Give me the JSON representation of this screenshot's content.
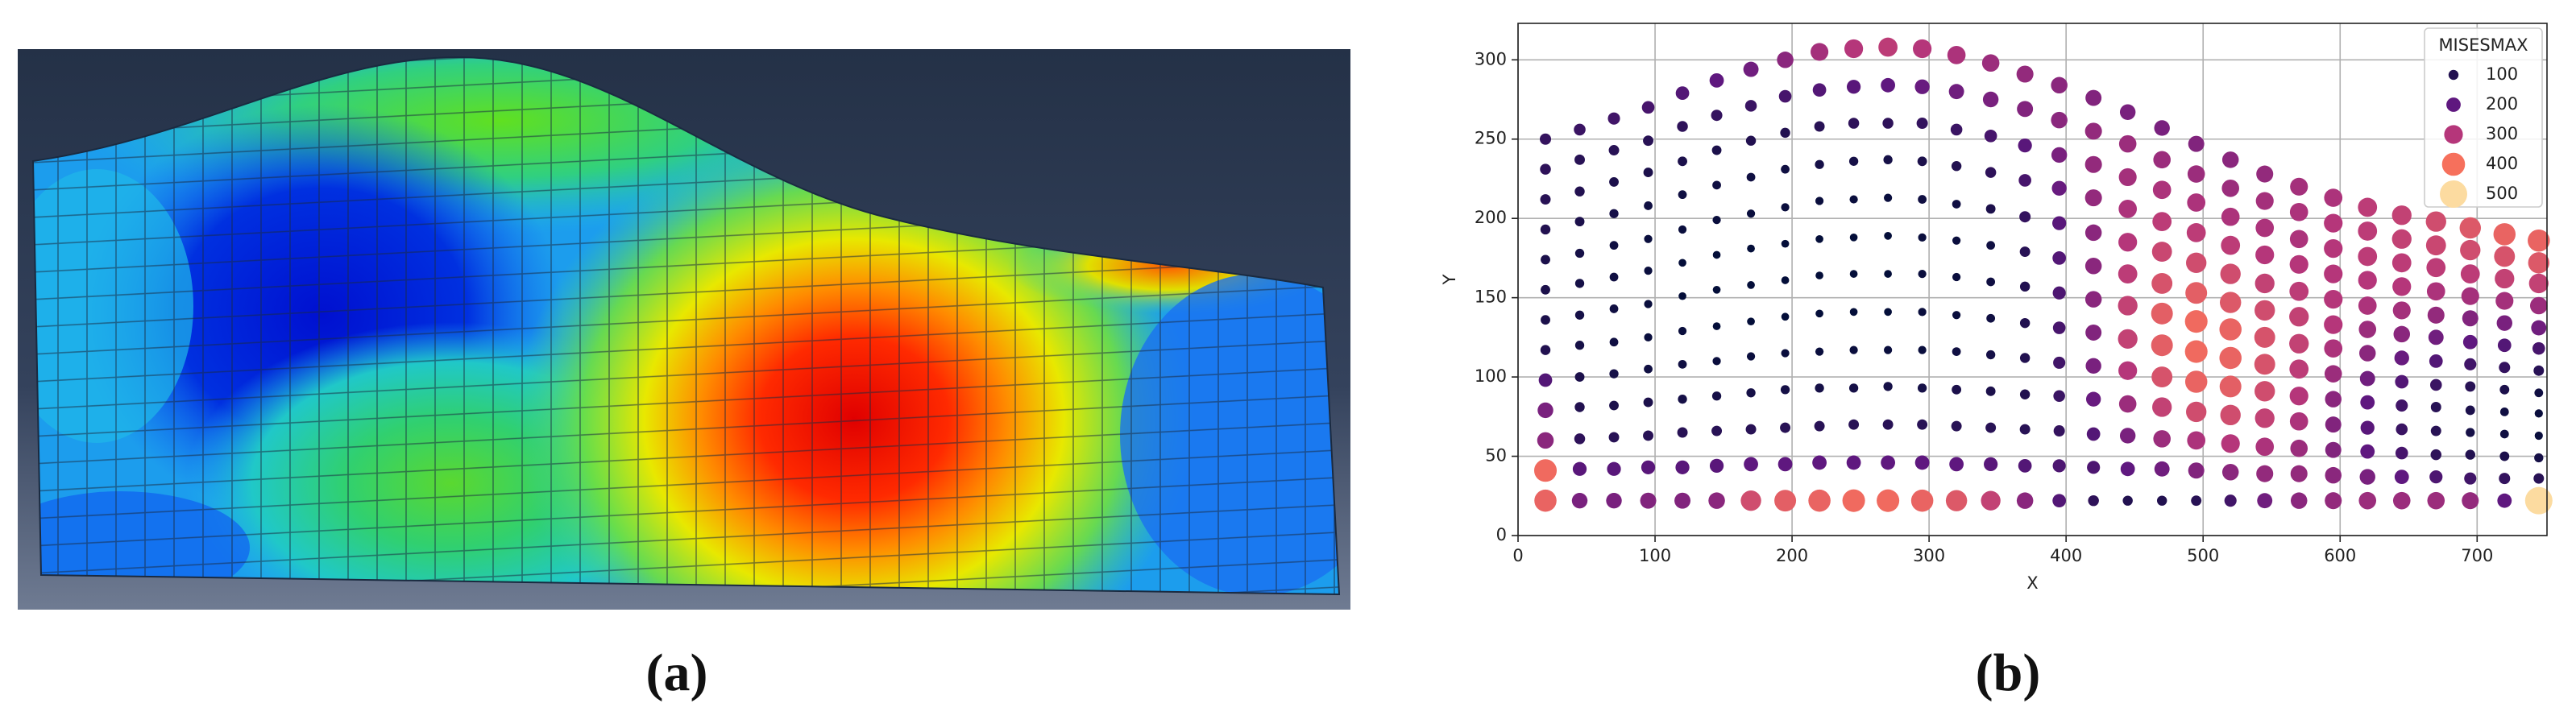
{
  "panel_labels": [
    "(a)",
    "(b)"
  ],
  "chart_data": {
    "type": "scatter",
    "x_label": "X",
    "y_label": "Y",
    "xlim": [
      0,
      751
    ],
    "ylim": [
      0,
      323
    ],
    "xticks": [
      0,
      100,
      200,
      300,
      400,
      500,
      600,
      700
    ],
    "yticks": [
      0,
      50,
      100,
      150,
      200,
      250,
      300
    ],
    "grid": true,
    "legend": {
      "title": "MISESMAX",
      "corner": "upper right",
      "values": [
        100,
        200,
        300,
        400,
        500
      ],
      "colors": [
        "#221150",
        "#5f187f",
        "#b5367a",
        "#f6705c",
        "#fcdba0"
      ]
    },
    "columns": [
      {
        "x": 20,
        "y": [
          22,
          41,
          60,
          79,
          98,
          117,
          136,
          155,
          174,
          193,
          212,
          231,
          250
        ],
        "values": [
          380,
          390,
          250,
          230,
          180,
          100,
          90,
          90,
          90,
          100,
          110,
          120,
          130
        ]
      },
      {
        "x": 45,
        "y": [
          22,
          42,
          61,
          81,
          100,
          120,
          139,
          159,
          178,
          198,
          217,
          237,
          256
        ],
        "values": [
          230,
          190,
          120,
          100,
          90,
          80,
          80,
          80,
          80,
          90,
          100,
          110,
          140
        ]
      },
      {
        "x": 70,
        "y": [
          22,
          42,
          62,
          82,
          102,
          122,
          143,
          163,
          183,
          203,
          223,
          243,
          263
        ],
        "values": [
          230,
          190,
          110,
          90,
          80,
          70,
          70,
          70,
          70,
          80,
          90,
          110,
          150
        ]
      },
      {
        "x": 95,
        "y": [
          22,
          43,
          63,
          84,
          105,
          125,
          146,
          167,
          187,
          208,
          229,
          249,
          270
        ],
        "values": [
          240,
          190,
          110,
          90,
          70,
          60,
          60,
          60,
          60,
          70,
          90,
          110,
          160
        ]
      },
      {
        "x": 120,
        "y": [
          22,
          43,
          65,
          86,
          108,
          129,
          151,
          172,
          193,
          215,
          236,
          258,
          279
        ],
        "values": [
          240,
          190,
          110,
          80,
          70,
          60,
          50,
          50,
          60,
          70,
          90,
          120,
          180
        ]
      },
      {
        "x": 145,
        "y": [
          22,
          44,
          66,
          88,
          110,
          132,
          155,
          177,
          199,
          221,
          243,
          265,
          287
        ],
        "values": [
          250,
          190,
          110,
          80,
          60,
          50,
          50,
          50,
          60,
          70,
          90,
          130,
          200
        ]
      },
      {
        "x": 170,
        "y": [
          22,
          45,
          67,
          90,
          113,
          135,
          158,
          181,
          203,
          226,
          249,
          271,
          294
        ],
        "values": [
          340,
          200,
          110,
          80,
          60,
          50,
          50,
          50,
          60,
          70,
          100,
          140,
          220
        ]
      },
      {
        "x": 195,
        "y": [
          22,
          45,
          68,
          92,
          115,
          138,
          161,
          184,
          207,
          231,
          254,
          277,
          300
        ],
        "values": [
          370,
          200,
          110,
          80,
          60,
          50,
          50,
          50,
          60,
          70,
          100,
          160,
          250
        ]
      },
      {
        "x": 220,
        "y": [
          22,
          46,
          69,
          93,
          116,
          140,
          164,
          187,
          211,
          234,
          258,
          281,
          305
        ],
        "values": [
          380,
          200,
          110,
          80,
          60,
          50,
          50,
          50,
          60,
          80,
          110,
          180,
          280
        ]
      },
      {
        "x": 245,
        "y": [
          22,
          46,
          70,
          93,
          117,
          141,
          165,
          188,
          212,
          236,
          260,
          283,
          307
        ],
        "values": [
          390,
          200,
          110,
          80,
          60,
          50,
          50,
          50,
          60,
          80,
          120,
          190,
          300
        ]
      },
      {
        "x": 270,
        "y": [
          22,
          46,
          70,
          94,
          117,
          141,
          165,
          189,
          213,
          237,
          260,
          284,
          308
        ],
        "values": [
          390,
          200,
          110,
          80,
          60,
          50,
          50,
          50,
          60,
          80,
          120,
          200,
          310
        ]
      },
      {
        "x": 295,
        "y": [
          22,
          46,
          70,
          93,
          117,
          141,
          165,
          188,
          212,
          236,
          260,
          283,
          307
        ],
        "values": [
          380,
          200,
          110,
          80,
          60,
          60,
          60,
          60,
          70,
          90,
          130,
          210,
          300
        ]
      },
      {
        "x": 320,
        "y": [
          22,
          45,
          69,
          92,
          116,
          139,
          163,
          186,
          209,
          233,
          256,
          280,
          303
        ],
        "values": [
          360,
          200,
          110,
          90,
          70,
          60,
          60,
          60,
          70,
          100,
          140,
          220,
          290
        ]
      },
      {
        "x": 345,
        "y": [
          22,
          45,
          68,
          91,
          114,
          137,
          160,
          183,
          206,
          229,
          252,
          275,
          298
        ],
        "values": [
          320,
          190,
          110,
          90,
          80,
          70,
          70,
          70,
          90,
          120,
          160,
          230,
          270
        ]
      },
      {
        "x": 370,
        "y": [
          22,
          44,
          67,
          89,
          112,
          134,
          157,
          179,
          201,
          224,
          246,
          269,
          291
        ],
        "values": [
          250,
          180,
          110,
          100,
          100,
          100,
          100,
          110,
          130,
          160,
          190,
          240,
          260
        ]
      },
      {
        "x": 395,
        "y": [
          22,
          44,
          66,
          88,
          109,
          131,
          153,
          175,
          197,
          219,
          240,
          262,
          284
        ],
        "values": [
          180,
          170,
          130,
          140,
          150,
          160,
          170,
          180,
          190,
          210,
          230,
          250,
          250
        ]
      },
      {
        "x": 420,
        "y": [
          22,
          43,
          64,
          86,
          107,
          128,
          149,
          170,
          191,
          213,
          234,
          255,
          276
        ],
        "values": [
          120,
          170,
          180,
          210,
          230,
          240,
          250,
          250,
          250,
          260,
          260,
          260,
          240
        ]
      },
      {
        "x": 445,
        "y": [
          22,
          42,
          63,
          83,
          104,
          124,
          145,
          165,
          185,
          206,
          226,
          247,
          267
        ],
        "values": [
          100,
          200,
          230,
          270,
          300,
          320,
          320,
          310,
          300,
          290,
          280,
          270,
          230
        ]
      },
      {
        "x": 470,
        "y": [
          22,
          42,
          61,
          81,
          100,
          120,
          140,
          159,
          179,
          198,
          218,
          237,
          257
        ],
        "values": [
          100,
          220,
          270,
          320,
          350,
          370,
          370,
          350,
          330,
          310,
          290,
          270,
          230
        ]
      },
      {
        "x": 495,
        "y": [
          22,
          41,
          60,
          78,
          97,
          116,
          135,
          153,
          172,
          191,
          210,
          228,
          247
        ],
        "values": [
          110,
          240,
          290,
          340,
          380,
          390,
          390,
          370,
          340,
          310,
          290,
          270,
          240
        ]
      },
      {
        "x": 520,
        "y": [
          22,
          40,
          58,
          76,
          94,
          112,
          130,
          147,
          165,
          183,
          201,
          219,
          237
        ],
        "values": [
          150,
          250,
          300,
          340,
          370,
          380,
          380,
          360,
          340,
          310,
          290,
          270,
          250
        ]
      },
      {
        "x": 545,
        "y": [
          22,
          39,
          56,
          74,
          91,
          108,
          125,
          142,
          159,
          177,
          194,
          211,
          228
        ],
        "values": [
          220,
          260,
          290,
          320,
          340,
          350,
          350,
          340,
          320,
          300,
          290,
          280,
          260
        ]
      },
      {
        "x": 570,
        "y": [
          22,
          39,
          55,
          72,
          88,
          105,
          121,
          138,
          154,
          171,
          187,
          204,
          220
        ],
        "values": [
          250,
          260,
          270,
          290,
          300,
          310,
          320,
          320,
          310,
          300,
          290,
          290,
          280
        ]
      },
      {
        "x": 595,
        "y": [
          22,
          38,
          54,
          70,
          86,
          102,
          118,
          133,
          149,
          165,
          181,
          197,
          213
        ],
        "values": [
          260,
          250,
          240,
          240,
          250,
          270,
          290,
          300,
          300,
          300,
          300,
          300,
          290
        ]
      },
      {
        "x": 620,
        "y": [
          22,
          37,
          53,
          68,
          84,
          99,
          115,
          130,
          145,
          161,
          176,
          192,
          207
        ],
        "values": [
          270,
          230,
          200,
          190,
          200,
          220,
          250,
          270,
          290,
          300,
          310,
          310,
          310
        ]
      },
      {
        "x": 645,
        "y": [
          22,
          37,
          52,
          67,
          82,
          97,
          112,
          127,
          142,
          157,
          172,
          187,
          202
        ],
        "values": [
          270,
          200,
          160,
          140,
          150,
          180,
          210,
          250,
          280,
          300,
          310,
          320,
          320
        ]
      },
      {
        "x": 670,
        "y": [
          22,
          37,
          51,
          66,
          81,
          95,
          110,
          125,
          139,
          154,
          169,
          183,
          198
        ],
        "values": [
          270,
          170,
          120,
          110,
          110,
          140,
          180,
          220,
          260,
          290,
          310,
          330,
          340
        ]
      },
      {
        "x": 695,
        "y": [
          22,
          36,
          51,
          65,
          79,
          94,
          108,
          122,
          137,
          151,
          165,
          180,
          194
        ],
        "values": [
          260,
          150,
          100,
          80,
          90,
          110,
          150,
          200,
          240,
          280,
          310,
          340,
          360
        ]
      },
      {
        "x": 720,
        "y": [
          22,
          36,
          50,
          64,
          78,
          92,
          106,
          120,
          134,
          148,
          162,
          176,
          190
        ],
        "values": [
          200,
          130,
          90,
          70,
          70,
          90,
          130,
          180,
          230,
          280,
          320,
          350,
          380
        ]
      },
      {
        "x": 745,
        "y": [
          22,
          36,
          49,
          63,
          77,
          90,
          104,
          118,
          131,
          145,
          159,
          172,
          186
        ],
        "values": [
          500,
          110,
          80,
          60,
          60,
          70,
          110,
          160,
          220,
          270,
          320,
          360,
          380
        ]
      }
    ]
  }
}
